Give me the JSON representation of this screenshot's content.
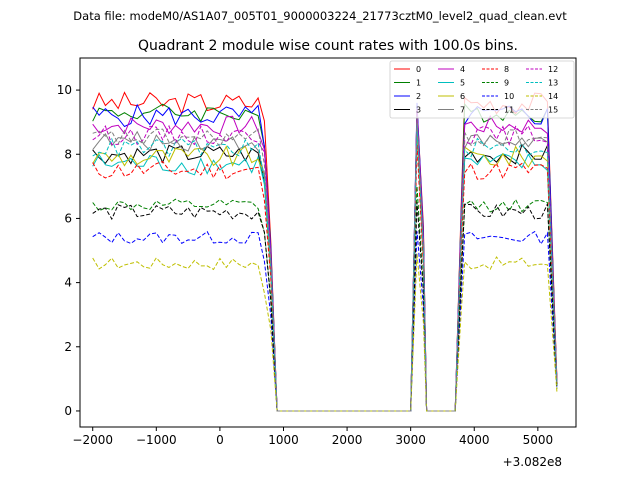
{
  "figure": {
    "suptitle": "Data file: modeM0/AS1A07_005T01_9000003224_21773cztM0_level2_quad_clean.evt",
    "title": "Quadrant 2 module wise count rates with 100.0s bins.",
    "x_offset_label": "+3.082e8"
  },
  "chart_data": {
    "type": "line",
    "title": "Quadrant 2 module wise count rates with 100.0s bins.",
    "xlabel": "",
    "ylabel": "",
    "x_offset": 308200000,
    "xlim": [
      -2200,
      5600
    ],
    "ylim": [
      -0.5,
      11
    ],
    "xticks": [
      -2000,
      -1000,
      0,
      1000,
      2000,
      3000,
      4000,
      5000
    ],
    "xtick_labels": [
      "−2000",
      "−1000",
      "0",
      "1000",
      "2000",
      "3000",
      "4000",
      "5000"
    ],
    "yticks": [
      0,
      2,
      4,
      6,
      8,
      10
    ],
    "ytick_labels": [
      "0",
      "2",
      "4",
      "6",
      "8",
      "10"
    ],
    "grid": false,
    "legend_position": "top-right",
    "segments": [
      [
        -2000,
        650
      ],
      [
        3050,
        3100
      ],
      [
        3850,
        5200
      ]
    ],
    "ramp_points": [
      [
        700,
        800
      ],
      [
        3150,
        3200
      ],
      [
        3750,
        3850
      ],
      [
        5250,
        5350
      ]
    ],
    "series": [
      {
        "name": "0",
        "color": "#ff0000",
        "style": "solid",
        "level": 9.6,
        "spread": 0.35,
        "peak": 9.5,
        "end": 1.0
      },
      {
        "name": "1",
        "color": "#008000",
        "style": "solid",
        "level": 9.3,
        "spread": 0.3,
        "peak": 9.4,
        "end": 0.9
      },
      {
        "name": "2",
        "color": "#0000ff",
        "style": "solid",
        "level": 9.2,
        "spread": 0.35,
        "peak": 9.6,
        "end": 0.8
      },
      {
        "name": "3",
        "color": "#000000",
        "style": "solid",
        "level": 8.0,
        "spread": 0.3,
        "peak": 9.0,
        "end": 0.9
      },
      {
        "name": "4",
        "color": "#bf00bf",
        "style": "solid",
        "level": 8.9,
        "spread": 0.3,
        "peak": 9.4,
        "end": 1.0
      },
      {
        "name": "5",
        "color": "#00bfbf",
        "style": "solid",
        "level": 7.7,
        "spread": 0.35,
        "peak": 8.8,
        "end": 0.8
      },
      {
        "name": "6",
        "color": "#bfbf00",
        "style": "solid",
        "level": 7.9,
        "spread": 0.35,
        "peak": 8.9,
        "end": 0.9
      },
      {
        "name": "7",
        "color": "#808080",
        "style": "solid",
        "level": 8.4,
        "spread": 0.3,
        "peak": 9.2,
        "end": 0.8
      },
      {
        "name": "8",
        "color": "#ff0000",
        "style": "dashed",
        "level": 7.5,
        "spread": 0.3,
        "peak": 8.3,
        "end": 0.8
      },
      {
        "name": "9",
        "color": "#008000",
        "style": "dashed",
        "level": 6.4,
        "spread": 0.2,
        "peak": 7.0,
        "end": 0.7
      },
      {
        "name": "10",
        "color": "#0000ff",
        "style": "dashed",
        "level": 5.4,
        "spread": 0.2,
        "peak": 5.6,
        "end": 0.7
      },
      {
        "name": "11",
        "color": "#000000",
        "style": "dashed",
        "level": 6.2,
        "spread": 0.25,
        "peak": 6.5,
        "end": 0.7
      },
      {
        "name": "12",
        "color": "#bf00bf",
        "style": "dashed",
        "level": 8.6,
        "spread": 0.3,
        "peak": 9.3,
        "end": 0.9
      },
      {
        "name": "13",
        "color": "#00bfbf",
        "style": "dashed",
        "level": 8.2,
        "spread": 0.3,
        "peak": 8.9,
        "end": 0.8
      },
      {
        "name": "14",
        "color": "#bfbf00",
        "style": "dashed",
        "level": 4.6,
        "spread": 0.2,
        "peak": 4.9,
        "end": 0.6
      },
      {
        "name": "15",
        "color": "#808080",
        "style": "dashed",
        "level": 8.5,
        "spread": 0.3,
        "peak": 9.2,
        "end": 0.9
      }
    ]
  }
}
